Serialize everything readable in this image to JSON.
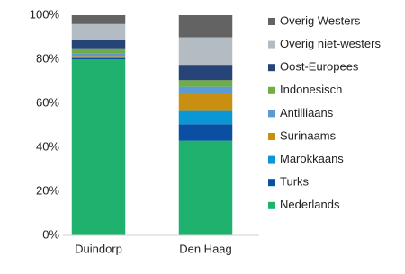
{
  "chart_data": {
    "type": "stacked_bar",
    "categories": [
      "Duindorp",
      "Den Haag"
    ],
    "series": [
      {
        "name": "Nederlands",
        "color": "#1fb26e",
        "values": [
          80,
          43
        ]
      },
      {
        "name": "Turks",
        "color": "#0b4fa3",
        "values": [
          0.5,
          7.5
        ]
      },
      {
        "name": "Marokkaans",
        "color": "#0a97d6",
        "values": [
          0.5,
          6
        ]
      },
      {
        "name": "Surinaams",
        "color": "#c98f10",
        "values": [
          0.5,
          8
        ]
      },
      {
        "name": "Antilliaans",
        "color": "#5b9bd5",
        "values": [
          1,
          3
        ]
      },
      {
        "name": "Indonesisch",
        "color": "#70ad47",
        "values": [
          2.5,
          3
        ]
      },
      {
        "name": "Oost-Europees",
        "color": "#264478",
        "values": [
          4,
          7
        ]
      },
      {
        "name": "Overig niet-westers",
        "color": "#b4bcc3",
        "values": [
          7,
          12.5
        ]
      },
      {
        "name": "Overig Westers",
        "color": "#636363",
        "values": [
          4,
          10
        ]
      }
    ],
    "ylim": [
      0,
      100
    ],
    "yticks": [
      {
        "value": 0,
        "label": "0%"
      },
      {
        "value": 20,
        "label": "20%"
      },
      {
        "value": 40,
        "label": "40%"
      },
      {
        "value": 60,
        "label": "60%"
      },
      {
        "value": 80,
        "label": "80%"
      },
      {
        "value": 100,
        "label": "100%"
      }
    ],
    "grid": false,
    "legend": "right"
  }
}
